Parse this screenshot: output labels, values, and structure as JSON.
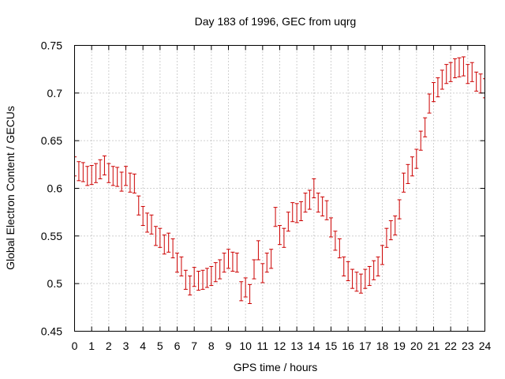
{
  "chart_data": {
    "type": "scatter",
    "title": "Day 183 of 1996, GEC from uqrg",
    "xlabel": "GPS time / hours",
    "ylabel": "Global Electron Content / GECUs",
    "xlim": [
      0,
      24
    ],
    "ylim": [
      0.45,
      0.75
    ],
    "xticks": [
      0,
      1,
      2,
      3,
      4,
      5,
      6,
      7,
      8,
      9,
      10,
      11,
      12,
      13,
      14,
      15,
      16,
      17,
      18,
      19,
      20,
      21,
      22,
      23,
      24
    ],
    "yticks": [
      0.45,
      0.5,
      0.55,
      0.6,
      0.65,
      0.7,
      0.75
    ],
    "ytick_labels": [
      "0.45",
      "0.5",
      "0.55",
      "0.6",
      "0.65",
      "0.7",
      "0.75"
    ],
    "grid": true,
    "color": "#cc0000",
    "error": 0.01,
    "x": [
      0,
      0.25,
      0.5,
      0.75,
      1,
      1.25,
      1.5,
      1.75,
      2,
      2.25,
      2.5,
      2.75,
      3,
      3.25,
      3.5,
      3.75,
      4,
      4.25,
      4.5,
      4.75,
      5,
      5.25,
      5.5,
      5.75,
      6,
      6.25,
      6.5,
      6.75,
      7,
      7.25,
      7.5,
      7.75,
      8,
      8.25,
      8.5,
      8.75,
      9,
      9.25,
      9.5,
      9.75,
      10,
      10.25,
      10.5,
      10.75,
      11,
      11.25,
      11.5,
      11.75,
      12,
      12.25,
      12.5,
      12.75,
      13,
      13.25,
      13.5,
      13.75,
      14,
      14.25,
      14.5,
      14.75,
      15,
      15.25,
      15.5,
      15.75,
      16,
      16.25,
      16.5,
      16.75,
      17,
      17.25,
      17.5,
      17.75,
      18,
      18.25,
      18.5,
      18.75,
      19,
      19.25,
      19.5,
      19.75,
      20,
      20.25,
      20.5,
      20.75,
      21,
      21.25,
      21.5,
      21.75,
      22,
      22.25,
      22.5,
      22.75,
      23,
      23.25,
      23.5,
      23.75,
      24
    ],
    "y": [
      0.623,
      0.618,
      0.617,
      0.613,
      0.614,
      0.616,
      0.62,
      0.624,
      0.616,
      0.613,
      0.612,
      0.607,
      0.613,
      0.606,
      0.605,
      0.582,
      0.571,
      0.564,
      0.562,
      0.55,
      0.548,
      0.541,
      0.543,
      0.537,
      0.522,
      0.518,
      0.504,
      0.498,
      0.507,
      0.503,
      0.504,
      0.506,
      0.508,
      0.512,
      0.515,
      0.522,
      0.526,
      0.523,
      0.522,
      0.492,
      0.496,
      0.489,
      0.515,
      0.535,
      0.511,
      0.522,
      0.526,
      0.57,
      0.551,
      0.548,
      0.565,
      0.575,
      0.574,
      0.576,
      0.585,
      0.588,
      0.6,
      0.585,
      0.581,
      0.577,
      0.559,
      0.545,
      0.537,
      0.518,
      0.513,
      0.505,
      0.502,
      0.5,
      0.505,
      0.508,
      0.514,
      0.518,
      0.53,
      0.548,
      0.556,
      0.561,
      0.578,
      0.606,
      0.615,
      0.623,
      0.631,
      0.65,
      0.664,
      0.689,
      0.701,
      0.706,
      0.714,
      0.72,
      0.722,
      0.726,
      0.727,
      0.728,
      0.72,
      0.722,
      0.712,
      0.71,
      0.705
    ]
  }
}
